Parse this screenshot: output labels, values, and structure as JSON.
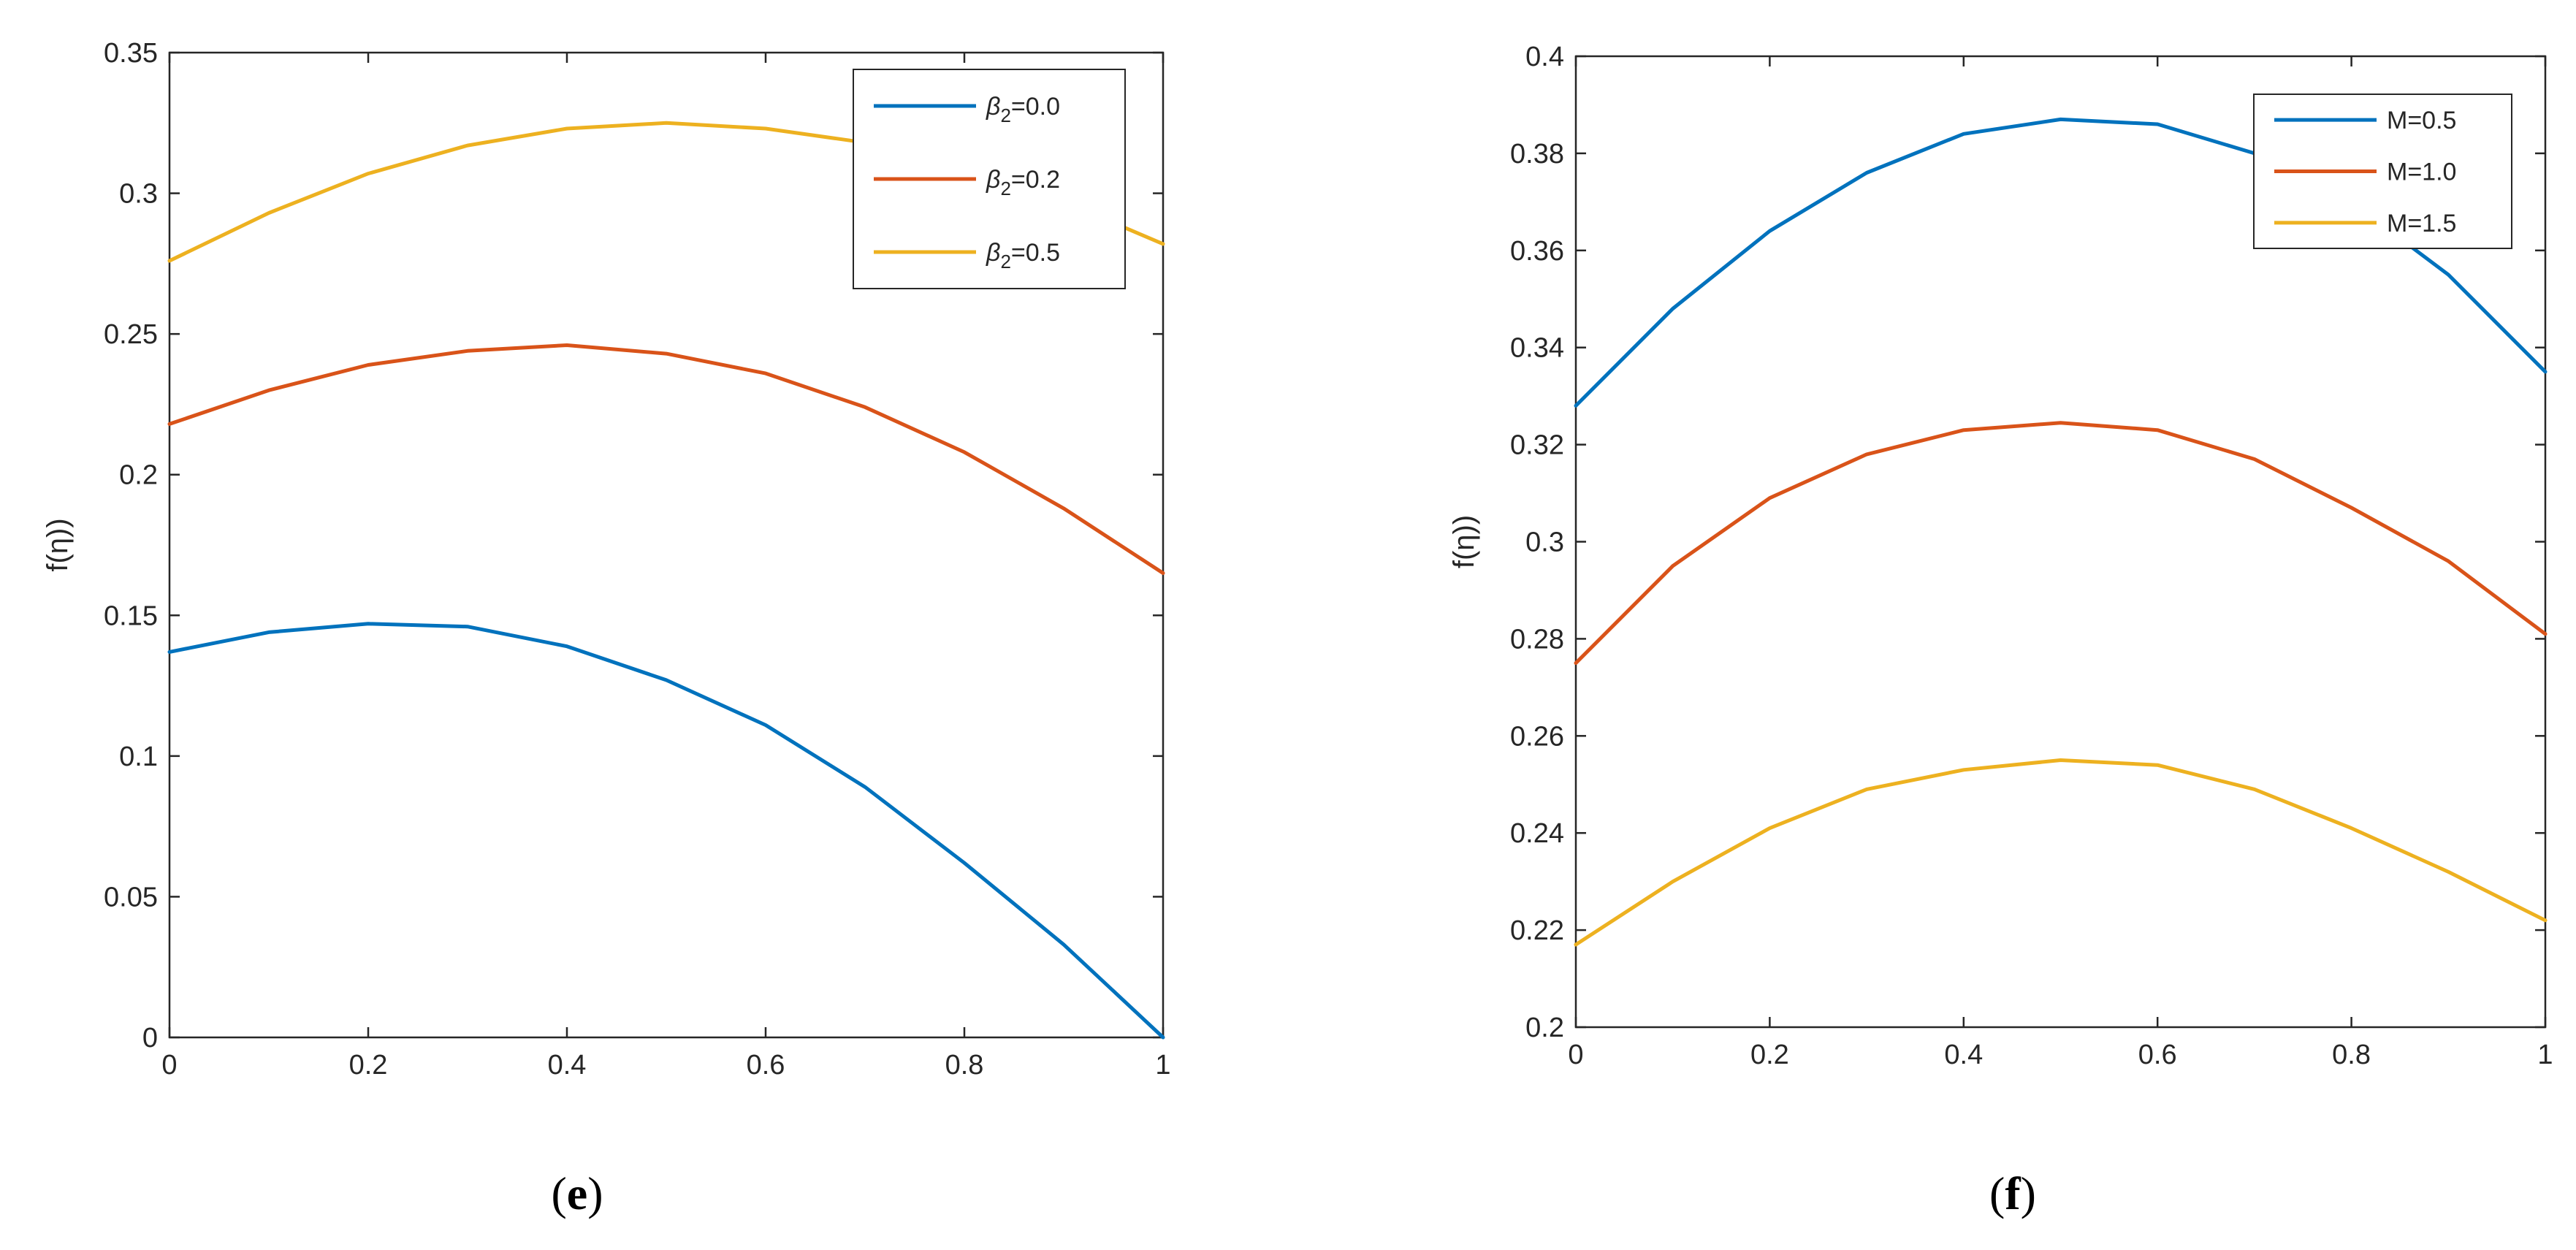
{
  "chart_data": [
    {
      "type": "line",
      "panel": "e",
      "caption": "e",
      "title": "",
      "xlabel": "",
      "ylabel": "f(η))",
      "xlim": [
        0,
        1
      ],
      "ylim": [
        0,
        0.35
      ],
      "xticks": [
        0,
        0.2,
        0.4,
        0.6,
        0.8,
        1
      ],
      "xtick_labels": [
        "0",
        "0.2",
        "0.4",
        "0.6",
        "0.8",
        "1"
      ],
      "yticks": [
        0,
        0.05,
        0.1,
        0.15,
        0.2,
        0.25,
        0.3,
        0.35
      ],
      "ytick_labels": [
        "0",
        "0.05",
        "0.1",
        "0.15",
        "0.2",
        "0.25",
        "0.3",
        "0.35"
      ],
      "legend_position": "top-right",
      "series": [
        {
          "name": "β2=0.0",
          "symbol": "β",
          "subscript": "2",
          "value_text": "=0.0",
          "color": "#0072BD",
          "x": [
            0,
            0.1,
            0.2,
            0.3,
            0.4,
            0.5,
            0.6,
            0.7,
            0.8,
            0.9,
            1.0
          ],
          "y": [
            0.137,
            0.144,
            0.147,
            0.146,
            0.139,
            0.127,
            0.111,
            0.089,
            0.062,
            0.033,
            0.0
          ]
        },
        {
          "name": "β2=0.2",
          "symbol": "β",
          "subscript": "2",
          "value_text": "=0.2",
          "color": "#D95319",
          "x": [
            0,
            0.1,
            0.2,
            0.3,
            0.4,
            0.5,
            0.6,
            0.7,
            0.8,
            0.9,
            1.0
          ],
          "y": [
            0.218,
            0.23,
            0.239,
            0.244,
            0.246,
            0.243,
            0.236,
            0.224,
            0.208,
            0.188,
            0.165
          ]
        },
        {
          "name": "β2=0.5",
          "symbol": "β",
          "subscript": "2",
          "value_text": "=0.5",
          "color": "#EDB120",
          "x": [
            0,
            0.1,
            0.2,
            0.3,
            0.4,
            0.5,
            0.6,
            0.7,
            0.8,
            0.9,
            1.0
          ],
          "y": [
            0.276,
            0.293,
            0.307,
            0.317,
            0.323,
            0.325,
            0.323,
            0.318,
            0.309,
            0.297,
            0.282
          ]
        }
      ]
    },
    {
      "type": "line",
      "panel": "f",
      "caption": "f",
      "title": "",
      "xlabel": "",
      "ylabel": "f(η))",
      "xlim": [
        0,
        1
      ],
      "ylim": [
        0.2,
        0.4
      ],
      "xticks": [
        0,
        0.2,
        0.4,
        0.6,
        0.8,
        1
      ],
      "xtick_labels": [
        "0",
        "0.2",
        "0.4",
        "0.6",
        "0.8",
        "1"
      ],
      "yticks": [
        0.2,
        0.22,
        0.24,
        0.26,
        0.28,
        0.3,
        0.32,
        0.34,
        0.36,
        0.38,
        0.4
      ],
      "ytick_labels": [
        "0.2",
        "0.22",
        "0.24",
        "0.26",
        "0.28",
        "0.3",
        "0.32",
        "0.34",
        "0.36",
        "0.38",
        "0.4"
      ],
      "legend_position": "top-right",
      "series": [
        {
          "name": "M=0.5",
          "symbol": "M",
          "subscript": "",
          "value_text": "=0.5",
          "color": "#0072BD",
          "x": [
            0,
            0.1,
            0.2,
            0.3,
            0.4,
            0.5,
            0.6,
            0.7,
            0.8,
            0.9,
            1.0
          ],
          "y": [
            0.328,
            0.348,
            0.364,
            0.376,
            0.384,
            0.387,
            0.386,
            0.38,
            0.37,
            0.355,
            0.335
          ]
        },
        {
          "name": "M=1.0",
          "symbol": "M",
          "subscript": "",
          "value_text": "=1.0",
          "color": "#D95319",
          "x": [
            0,
            0.1,
            0.2,
            0.3,
            0.4,
            0.5,
            0.6,
            0.7,
            0.8,
            0.9,
            1.0
          ],
          "y": [
            0.275,
            0.295,
            0.309,
            0.318,
            0.323,
            0.3245,
            0.323,
            0.317,
            0.307,
            0.296,
            0.281
          ]
        },
        {
          "name": "M=1.5",
          "symbol": "M",
          "subscript": "",
          "value_text": "=1.5",
          "color": "#EDB120",
          "x": [
            0,
            0.1,
            0.2,
            0.3,
            0.4,
            0.5,
            0.6,
            0.7,
            0.8,
            0.9,
            1.0
          ],
          "y": [
            0.217,
            0.23,
            0.241,
            0.249,
            0.253,
            0.255,
            0.254,
            0.249,
            0.241,
            0.232,
            0.222
          ]
        }
      ]
    }
  ]
}
